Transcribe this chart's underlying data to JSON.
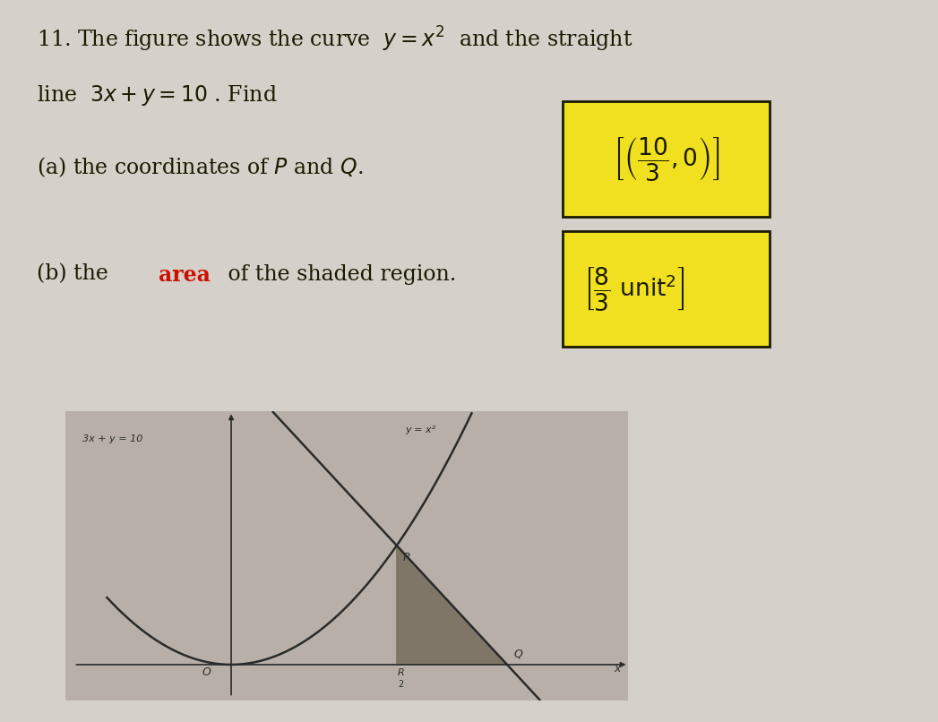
{
  "page_bg": "#d6d0ca",
  "graph_bg": "#b8b0a8",
  "yellow_color": "#f0e020",
  "dark_text": "#1a1a00",
  "red_text": "#cc1100",
  "line_color": "#2a2a2a",
  "curve_color": "#2a2a2a",
  "shaded_fill": "#7a7060",
  "xlim": [
    -2.0,
    4.8
  ],
  "ylim": [
    -1.2,
    8.5
  ],
  "x_P": 2.0,
  "y_P": 4.0,
  "x_Q": 3.3333333,
  "y_Q": 0.0,
  "curve_label": "y = x²",
  "line_label": "3x + y = 10"
}
